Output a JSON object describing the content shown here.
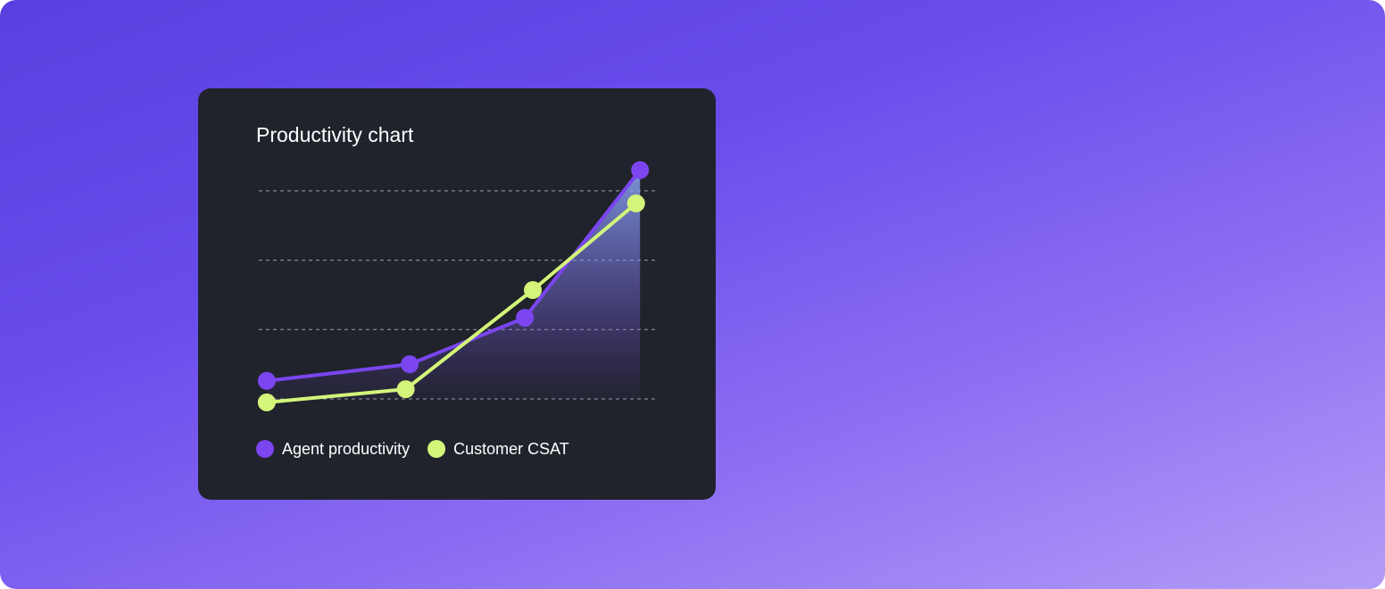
{
  "chart_data": {
    "type": "line",
    "title": "Productivity chart",
    "xlim": [
      0,
      10
    ],
    "ylim": [
      -0.5,
      3.5
    ],
    "yticks": [
      0,
      1,
      2,
      3
    ],
    "grid": true,
    "series": [
      {
        "name": "Agent productivity",
        "color": "#7b45f0",
        "x": [
          0.2,
          3.8,
          6.7,
          9.6
        ],
        "values": [
          0.26,
          0.5,
          1.17,
          3.3
        ]
      },
      {
        "name": "Customer CSAT",
        "color": "#d4f57a",
        "x": [
          0.2,
          3.7,
          6.9,
          9.5
        ],
        "values": [
          -0.05,
          0.14,
          1.57,
          2.82
        ]
      }
    ]
  }
}
